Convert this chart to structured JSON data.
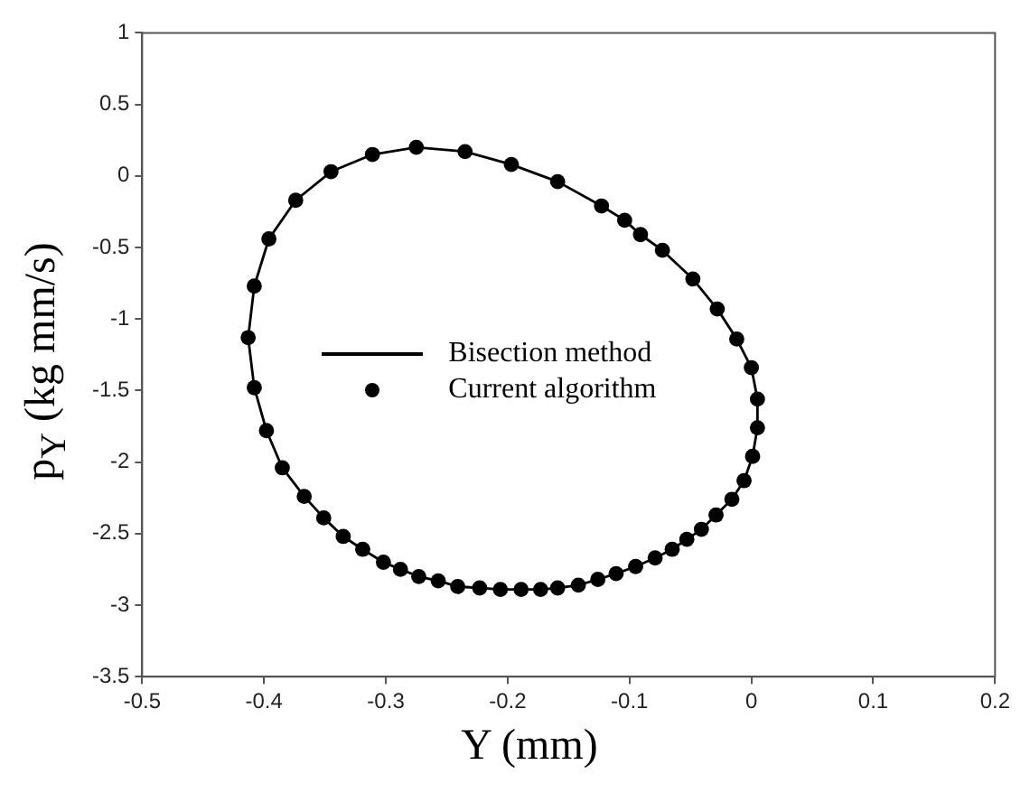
{
  "chart_data": {
    "type": "scatter",
    "xlabel": "Y (mm)",
    "ylabel": "p$_{Y}$ (kg mm/s)",
    "xlim": [
      -0.5,
      0.2
    ],
    "xticks": [
      -0.5,
      -0.4,
      -0.3,
      -0.2,
      -0.1,
      0,
      0.1,
      0.2
    ],
    "ylim": [
      -3.5,
      1
    ],
    "yticks": [
      -3.5,
      -3,
      -2.5,
      -2,
      -1.5,
      -1,
      -0.5,
      0,
      0.5,
      1
    ],
    "legend": "center",
    "series": [
      {
        "name": "Bisection method",
        "type": "line",
        "color": "#000000",
        "marker": "none",
        "line_style": "solid",
        "x": [
          -0.413,
          -0.408,
          -0.396,
          -0.374,
          -0.345,
          -0.311,
          -0.275,
          -0.235,
          -0.197,
          -0.159,
          -0.123,
          -0.104,
          -0.091,
          -0.073,
          -0.048,
          -0.028,
          -0.012,
          0,
          0.005
        ],
        "values": [
          -1.13,
          -0.77,
          -0.44,
          -0.17,
          0.03,
          0.15,
          0.2,
          0.17,
          0.08,
          -0.04,
          -0.21,
          -0.31,
          -0.41,
          -0.52,
          -0.72,
          -0.93,
          -1.14,
          -1.34,
          -1.56
        ]
      },
      {
        "type": "line",
        "color": "#000000",
        "marker": "none",
        "line_style": "solid",
        "x": [
          0.005,
          0.005,
          0.001,
          -0.006,
          -0.016,
          -0.029,
          -0.041,
          -0.053,
          -0.065,
          -0.079,
          -0.095,
          -0.111,
          -0.126,
          -0.142,
          -0.159,
          -0.173,
          -0.189,
          -0.206,
          -0.223,
          -0.241,
          -0.257,
          -0.273,
          -0.288,
          -0.302,
          -0.319,
          -0.335,
          -0.351,
          -0.367,
          -0.385,
          -0.398,
          -0.408,
          -0.413
        ],
        "values": [
          -1.56,
          -1.76,
          -1.96,
          -2.13,
          -2.26,
          -2.37,
          -2.47,
          -2.54,
          -2.61,
          -2.67,
          -2.73,
          -2.78,
          -2.82,
          -2.86,
          -2.88,
          -2.89,
          -2.89,
          -2.89,
          -2.88,
          -2.87,
          -2.83,
          -2.8,
          -2.75,
          -2.7,
          -2.61,
          -2.52,
          -2.39,
          -2.24,
          -2.04,
          -1.78,
          -1.48,
          -1.13
        ]
      },
      {
        "name": "Current algorithm",
        "color": "#000000",
        "marker": "circle",
        "x": [
          -0.275,
          -0.235,
          -0.197,
          -0.159,
          -0.123,
          -0.104,
          -0.091,
          -0.073,
          -0.048,
          -0.028,
          -0.012,
          0,
          0.005,
          0.005,
          0.001,
          -0.006,
          -0.016,
          -0.029,
          -0.041,
          -0.053,
          -0.065,
          -0.079,
          -0.095,
          -0.111,
          -0.126,
          -0.142,
          -0.159,
          -0.173,
          -0.189,
          -0.206,
          -0.223,
          -0.241,
          -0.257,
          -0.273,
          -0.288,
          -0.302,
          -0.319,
          -0.335,
          -0.351,
          -0.367,
          -0.385,
          -0.398,
          -0.408,
          -0.413,
          -0.408,
          -0.396,
          -0.374,
          -0.345,
          -0.311
        ],
        "values": [
          0.2,
          0.17,
          0.08,
          -0.04,
          -0.21,
          -0.31,
          -0.41,
          -0.52,
          -0.72,
          -0.93,
          -1.14,
          -1.34,
          -1.56,
          -1.76,
          -1.96,
          -2.13,
          -2.26,
          -2.37,
          -2.47,
          -2.54,
          -2.61,
          -2.67,
          -2.73,
          -2.78,
          -2.82,
          -2.86,
          -2.88,
          -2.89,
          -2.89,
          -2.89,
          -2.88,
          -2.87,
          -2.83,
          -2.8,
          -2.75,
          -2.7,
          -2.61,
          -2.52,
          -2.39,
          -2.24,
          -2.04,
          -1.78,
          -1.48,
          -1.13,
          -0.77,
          -0.44,
          -0.17,
          0.03,
          0.15
        ]
      }
    ]
  }
}
